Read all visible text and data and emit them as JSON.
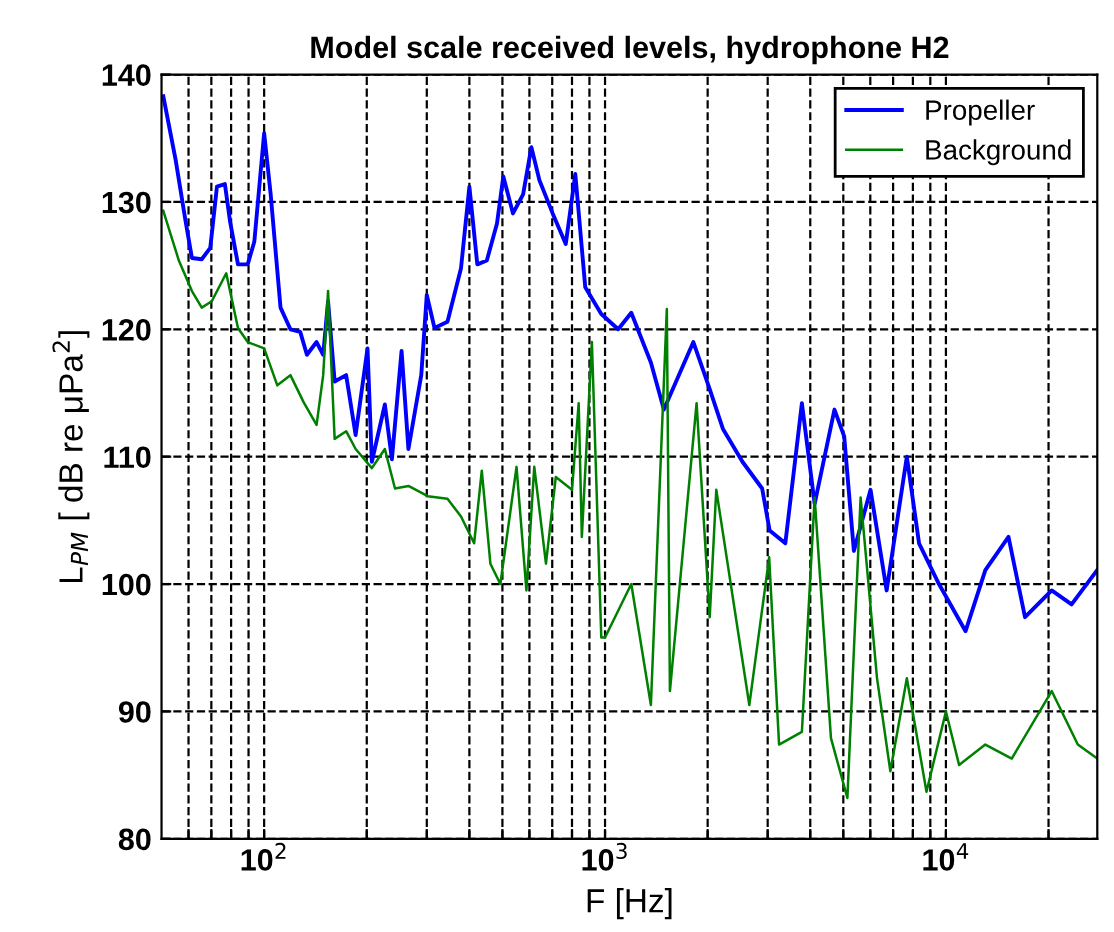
{
  "chart_data": {
    "type": "line",
    "title": "Model scale received levels, hydrophone H2",
    "xlabel": "F [Hz]",
    "ylabel": "L$_{PM}$ [ dB re μPa$^{2}$]",
    "log": "x",
    "xlim": [
      50,
      27800
    ],
    "ylim": [
      80,
      140
    ],
    "xticks": [
      {
        "value": 60,
        "label": null
      },
      {
        "value": 70,
        "label": null
      },
      {
        "value": 80,
        "label": null
      },
      {
        "value": 90,
        "label": null
      },
      {
        "value": 100,
        "label": "10$^{2}$"
      },
      {
        "value": 200,
        "label": null
      },
      {
        "value": 300,
        "label": null
      },
      {
        "value": 400,
        "label": null
      },
      {
        "value": 500,
        "label": null
      },
      {
        "value": 600,
        "label": null
      },
      {
        "value": 700,
        "label": null
      },
      {
        "value": 800,
        "label": null
      },
      {
        "value": 900,
        "label": null
      },
      {
        "value": 1000,
        "label": "10$^{3}$"
      },
      {
        "value": 2000,
        "label": null
      },
      {
        "value": 3000,
        "label": null
      },
      {
        "value": 4000,
        "label": null
      },
      {
        "value": 5000,
        "label": null
      },
      {
        "value": 6000,
        "label": null
      },
      {
        "value": 7000,
        "label": null
      },
      {
        "value": 8000,
        "label": null
      },
      {
        "value": 9000,
        "label": null
      },
      {
        "value": 10000,
        "label": "10$^{4}$"
      },
      {
        "value": 20000,
        "label": null
      }
    ],
    "yticks": [
      80,
      90,
      100,
      110,
      120,
      130,
      140
    ],
    "grid": true,
    "legend": "top right",
    "series": [
      {
        "name": "Propeller",
        "color": "#0000ff",
        "x": [
          50.6,
          55,
          58.8,
          61.4,
          65.6,
          69.5,
          72.7,
          76.7,
          79.4,
          83.8,
          89.5,
          93.6,
          100,
          104.5,
          111.7,
          119.4,
          127.6,
          133.5,
          142.5,
          149,
          154,
          161,
          174,
          185.5,
          201,
          207,
          226,
          237,
          253,
          265,
          289,
          300,
          316,
          345,
          378,
          400,
          422,
          450,
          482,
          503,
          537,
          575,
          608,
          642,
          702,
          767,
          818,
          875,
          975,
          1093,
          1194,
          1363,
          1488,
          1816,
          2028,
          2216,
          2530,
          2890,
          3040,
          3380,
          3780,
          4120,
          4710,
          5030,
          5370,
          6010,
          6700,
          7680,
          8340,
          9540,
          11420,
          13050,
          15260,
          17060,
          20430,
          23370,
          27800
        ],
        "values": [
          138.3,
          133.3,
          128.5,
          125.6,
          125.5,
          126.4,
          131.2,
          131.4,
          128.5,
          125.1,
          125.1,
          126.9,
          135.4,
          130.6,
          121.7,
          120,
          119.8,
          118,
          119,
          118,
          122.2,
          115.9,
          116.4,
          111.7,
          118.5,
          109.6,
          114.1,
          109.8,
          118.3,
          110.6,
          116.4,
          122.7,
          120.1,
          120.6,
          124.8,
          131.2,
          125.1,
          125.4,
          128.3,
          132,
          129.1,
          130.6,
          134.3,
          131.7,
          129.1,
          126.7,
          132.2,
          123.3,
          121.2,
          120,
          121.3,
          117.4,
          113.7,
          119,
          115.3,
          112.2,
          109.6,
          107.5,
          104.2,
          103.2,
          114.2,
          106.3,
          113.7,
          111.6,
          102.6,
          107.4,
          99.5,
          110,
          103.2,
          100,
          96.3,
          101.1,
          103.7,
          97.4,
          99.5,
          98.4,
          101.1
        ]
      },
      {
        "name": "Background",
        "color": "#008000",
        "x": [
          50.6,
          56.2,
          61.4,
          65.6,
          70.2,
          77.4,
          83.8,
          89.5,
          100,
          109.3,
          119.4,
          130.4,
          142.5,
          149,
          154,
          161,
          174,
          185.5,
          207,
          226,
          242,
          265,
          302,
          345,
          378,
          413,
          435,
          461,
          493,
          550,
          588,
          620,
          671,
          717,
          800,
          837,
          855,
          915,
          975,
          1000,
          1194,
          1363,
          1518,
          1550,
          1856,
          2028,
          2120,
          2650,
          3030,
          3240,
          3780,
          4120,
          4600,
          5140,
          5620,
          6280,
          6870,
          7680,
          8770,
          10000,
          10930,
          13050,
          15600,
          20430,
          24370,
          27800
        ],
        "values": [
          129.3,
          125.4,
          123,
          121.7,
          122.2,
          124.4,
          120.1,
          119,
          118.5,
          115.6,
          116.4,
          114.3,
          112.5,
          116.4,
          123,
          111.4,
          112,
          110.6,
          109.1,
          110.6,
          107.5,
          107.7,
          106.9,
          106.7,
          105.3,
          103.2,
          108.9,
          101.6,
          100,
          109.2,
          99.5,
          109.2,
          101.6,
          108.4,
          107.4,
          114.2,
          103.7,
          119,
          95.8,
          95.8,
          100,
          90.5,
          121.6,
          91.6,
          114.2,
          97.4,
          107.4,
          90.5,
          102.1,
          87.4,
          88.4,
          106.8,
          87.9,
          83.2,
          106.8,
          92.6,
          85.3,
          92.6,
          83.7,
          90,
          85.8,
          87.4,
          86.3,
          91.6,
          87.4,
          86.3
        ]
      }
    ]
  }
}
